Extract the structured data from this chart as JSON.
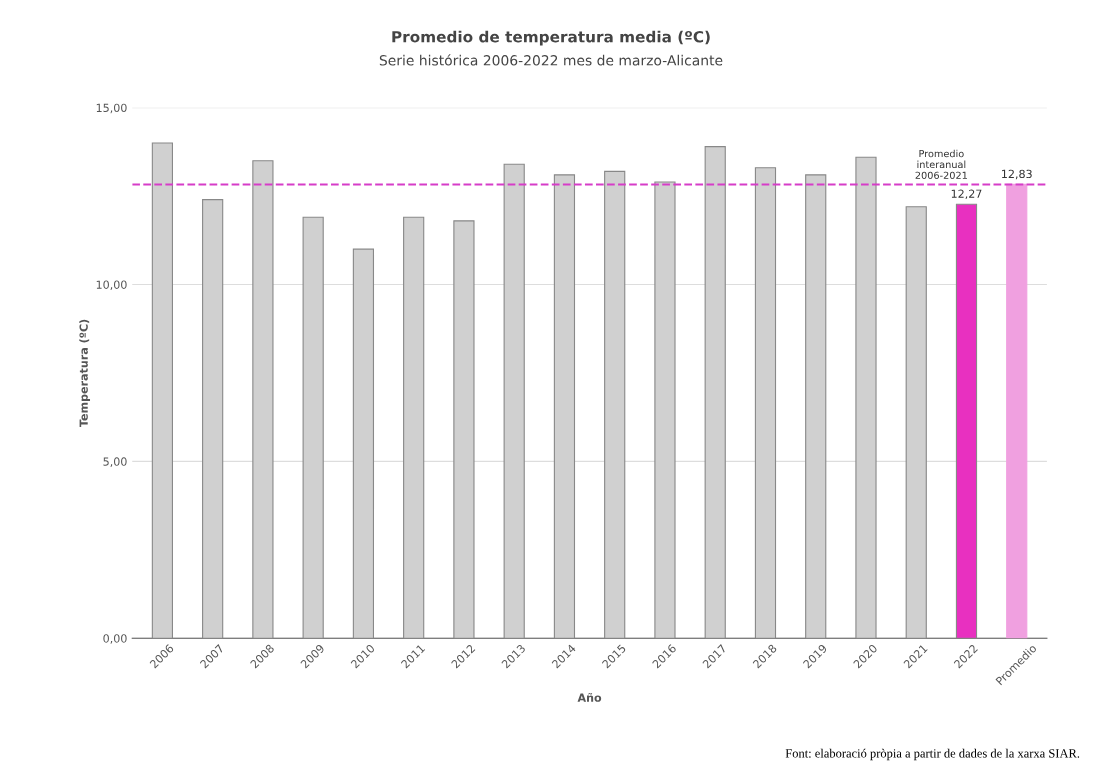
{
  "chart_data": {
    "type": "bar",
    "title": "Promedio de temperatura media (ºC)",
    "subtitle": "Serie histórica 2006-2022 mes de marzo-Alicante",
    "xlabel": "Año",
    "ylabel": "Temperatura (ºC)",
    "categories": [
      "2006",
      "2007",
      "2008",
      "2009",
      "2010",
      "2011",
      "2012",
      "2013",
      "2014",
      "2015",
      "2016",
      "2017",
      "2018",
      "2019",
      "2020",
      "2021",
      "2022",
      "Promedio"
    ],
    "values": [
      14.0,
      12.4,
      13.5,
      11.9,
      11.0,
      11.9,
      11.8,
      13.4,
      13.1,
      13.2,
      12.9,
      13.9,
      13.3,
      13.1,
      13.6,
      12.2,
      12.27,
      12.83
    ],
    "colors": [
      "#d0d0d0",
      "#d0d0d0",
      "#d0d0d0",
      "#d0d0d0",
      "#d0d0d0",
      "#d0d0d0",
      "#d0d0d0",
      "#d0d0d0",
      "#d0d0d0",
      "#d0d0d0",
      "#d0d0d0",
      "#d0d0d0",
      "#d0d0d0",
      "#d0d0d0",
      "#d0d0d0",
      "#d0d0d0",
      "#e830c0",
      "#f0a0e0"
    ],
    "value_labels": [
      null,
      null,
      null,
      null,
      null,
      null,
      null,
      null,
      null,
      null,
      null,
      null,
      null,
      null,
      null,
      null,
      "12,27",
      "12,83"
    ],
    "ylim": [
      0,
      15
    ],
    "yticks": [
      {
        "value": 0,
        "label": "0,00"
      },
      {
        "value": 5,
        "label": "5,00"
      },
      {
        "value": 10,
        "label": "10,00"
      },
      {
        "value": 15,
        "label": "15,00"
      }
    ],
    "grid": "y",
    "ref_lines": [
      {
        "axis": "y",
        "value": 12.83,
        "label": "Promedio\ninteranual\n2006-2021",
        "color": "#d63cc8",
        "line_style": "dashed"
      }
    ],
    "annotations": [
      "Font: elaboració pròpia a partir de dades de la xarxa SIAR."
    ]
  }
}
